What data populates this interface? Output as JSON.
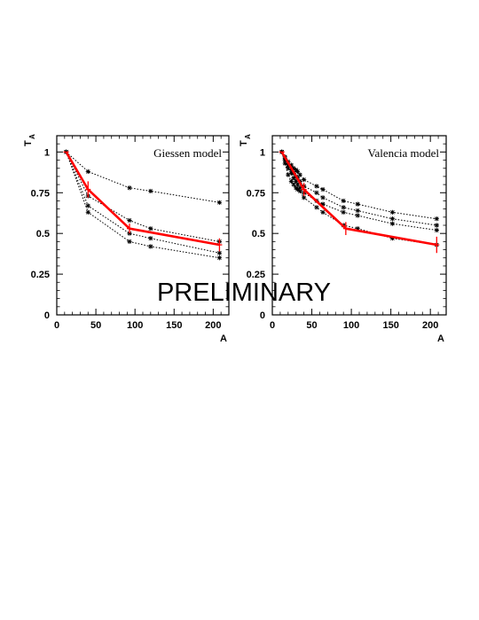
{
  "watermark": "PRELIMINARY",
  "colors": {
    "highlight": "#ff0000",
    "model": "#000000"
  },
  "chart_data": [
    {
      "type": "line",
      "annotation": "Giessen model",
      "xlabel": "A",
      "ylabel": "T",
      "ylabel_sub": "A",
      "xlim": [
        0,
        220
      ],
      "ylim": [
        0,
        1.1
      ],
      "xticks": [
        0,
        50,
        100,
        150,
        200
      ],
      "yticks": [
        0,
        0.25,
        0.5,
        0.75,
        1
      ],
      "ytick_labels": [
        "0",
        "0.25",
        "0.5",
        "0.75",
        "1"
      ],
      "grid": false,
      "model_series": [
        {
          "x": [
            12,
            40,
            93,
            120,
            208
          ],
          "y": [
            1.0,
            0.88,
            0.78,
            0.76,
            0.69
          ]
        },
        {
          "x": [
            12,
            40,
            93,
            120,
            208
          ],
          "y": [
            1.0,
            0.73,
            0.58,
            0.53,
            0.45
          ]
        },
        {
          "x": [
            12,
            40,
            93,
            120,
            208
          ],
          "y": [
            1.0,
            0.67,
            0.5,
            0.47,
            0.38
          ]
        },
        {
          "x": [
            12,
            40,
            93,
            120,
            208
          ],
          "y": [
            1.0,
            0.63,
            0.45,
            0.42,
            0.35
          ]
        }
      ],
      "measured": {
        "x": [
          12,
          40,
          93,
          208
        ],
        "y": [
          1.0,
          0.77,
          0.53,
          0.43
        ],
        "yerr": [
          0.0,
          0.05,
          0.03,
          0.04
        ]
      }
    },
    {
      "type": "line",
      "annotation": "Valencia model",
      "xlabel": "A",
      "ylabel": "T",
      "ylabel_sub": "A",
      "xlim": [
        0,
        220
      ],
      "ylim": [
        0,
        1.1
      ],
      "xticks": [
        0,
        50,
        100,
        150,
        200
      ],
      "yticks": [
        0,
        0.25,
        0.5,
        0.75,
        1
      ],
      "ytick_labels": [
        "0",
        "0.25",
        "0.5",
        "0.75",
        "1"
      ],
      "grid": false,
      "model_series": [
        {
          "x": [
            12,
            16,
            20,
            24,
            27,
            30,
            32,
            35,
            40,
            56,
            64,
            90,
            108,
            152,
            208
          ],
          "y": [
            1.0,
            0.97,
            0.94,
            0.92,
            0.9,
            0.89,
            0.88,
            0.86,
            0.83,
            0.79,
            0.77,
            0.7,
            0.68,
            0.63,
            0.59
          ]
        },
        {
          "x": [
            12,
            16,
            20,
            24,
            27,
            30,
            32,
            35,
            40,
            56,
            64,
            90,
            108,
            152,
            208
          ],
          "y": [
            1.0,
            0.96,
            0.92,
            0.89,
            0.87,
            0.85,
            0.84,
            0.82,
            0.79,
            0.75,
            0.72,
            0.66,
            0.64,
            0.59,
            0.55
          ]
        },
        {
          "x": [
            12,
            16,
            20,
            24,
            27,
            30,
            32,
            35,
            40,
            56,
            64,
            90,
            108,
            152,
            208
          ],
          "y": [
            1.0,
            0.95,
            0.9,
            0.87,
            0.84,
            0.82,
            0.8,
            0.78,
            0.75,
            0.7,
            0.68,
            0.63,
            0.61,
            0.56,
            0.52
          ]
        },
        {
          "x": [
            12,
            16,
            20,
            24,
            27,
            30,
            32,
            35,
            40,
            56,
            64,
            90,
            108,
            152,
            208
          ],
          "y": [
            1.0,
            0.93,
            0.86,
            0.82,
            0.8,
            0.78,
            0.77,
            0.76,
            0.72,
            0.66,
            0.63,
            0.55,
            0.53,
            0.47,
            0.43
          ]
        }
      ],
      "measured": {
        "x": [
          12,
          40,
          93,
          208
        ],
        "y": [
          1.0,
          0.77,
          0.53,
          0.43
        ],
        "yerr": [
          0.0,
          0.04,
          0.04,
          0.05
        ]
      }
    }
  ]
}
